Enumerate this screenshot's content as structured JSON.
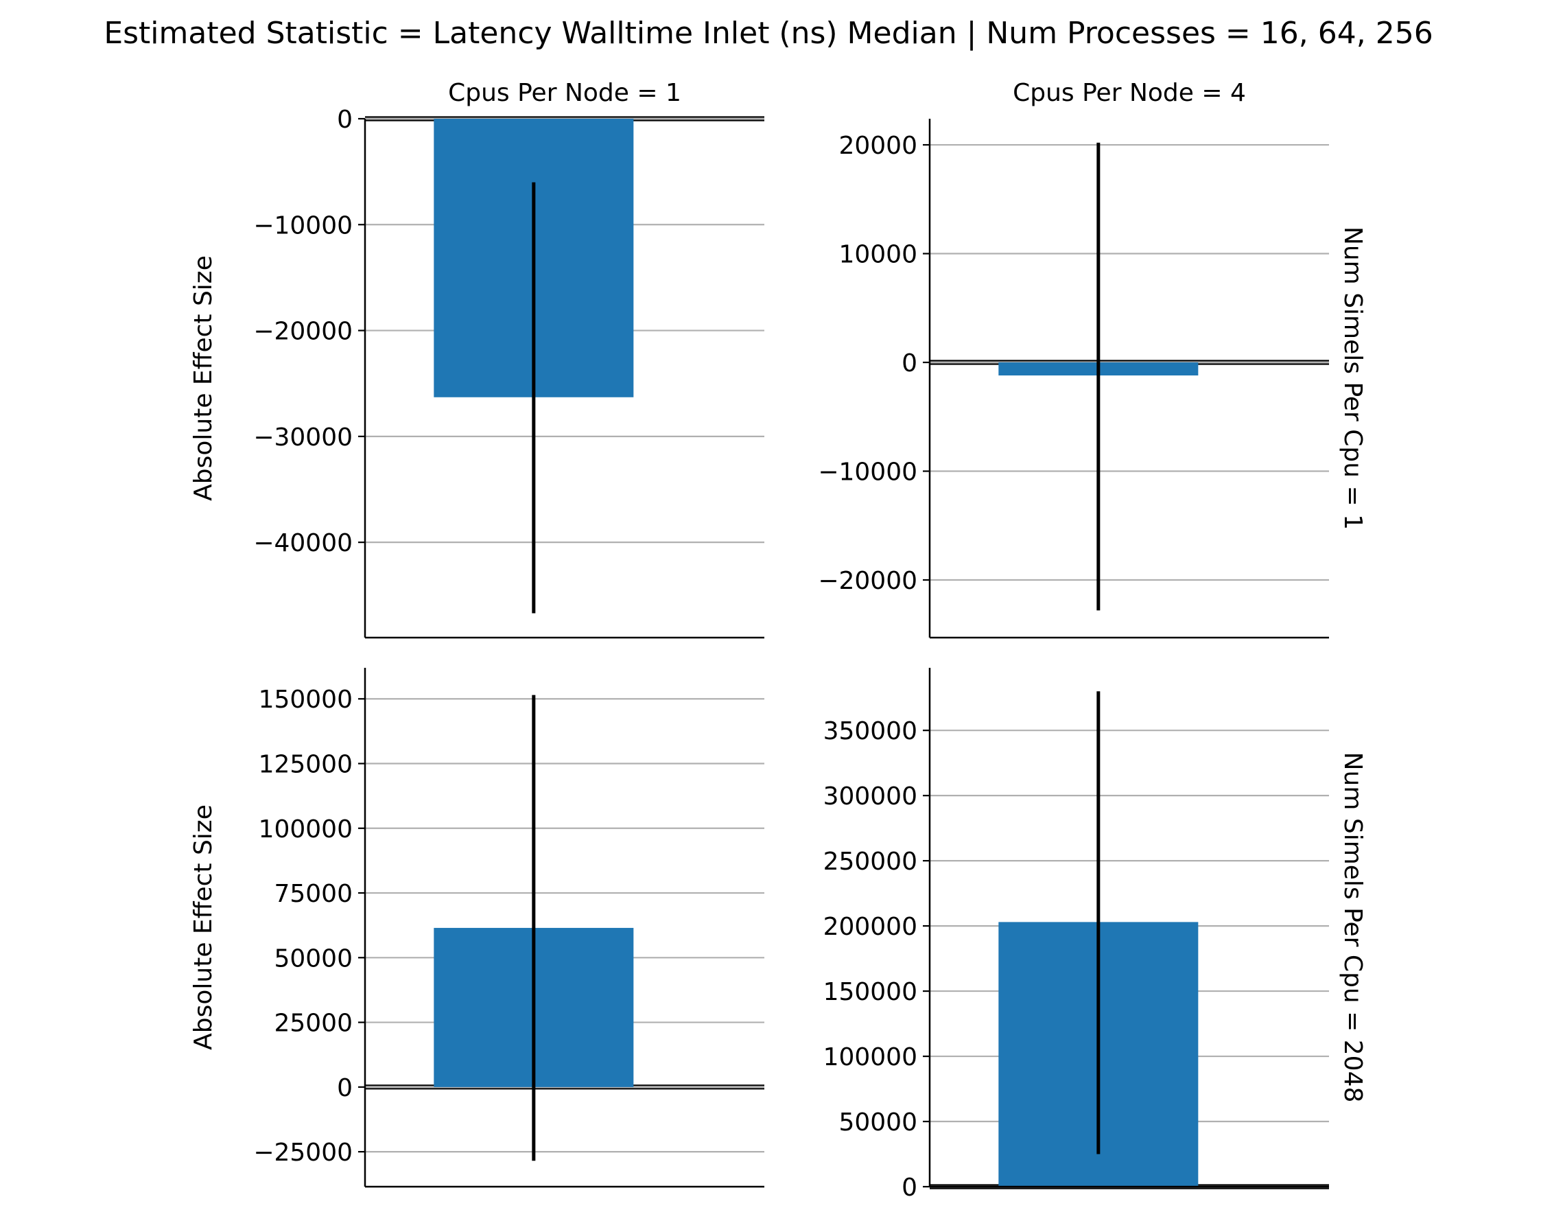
{
  "title": "Estimated Statistic = Latency Walltime Inlet (ns) Median | Num Processes = 16, 64, 256",
  "colors": {
    "bar": "#1f77b4",
    "error_bar": "#000000",
    "grid": "#b0b0b0"
  },
  "chart_data": [
    {
      "type": "bar",
      "col_title": "Cpus Per Node = 1",
      "row_label": "",
      "ylabel": "Absolute Effect Size",
      "ylim": [
        -49000,
        0
      ],
      "yticks": [
        0,
        -10000,
        -20000,
        -30000,
        -40000
      ],
      "ytick_labels": [
        "0",
        "−10000",
        "−20000",
        "−30000",
        "−40000"
      ],
      "value": -26300,
      "ci": [
        -46700,
        -6000
      ],
      "grid": true
    },
    {
      "type": "bar",
      "col_title": "Cpus Per Node = 4",
      "row_label": "Num Simels Per Cpu = 1",
      "ylabel": "",
      "ylim": [
        -25300,
        22400
      ],
      "yticks": [
        20000,
        10000,
        0,
        -10000,
        -20000
      ],
      "ytick_labels": [
        "20000",
        "10000",
        "0",
        "−10000",
        "−20000"
      ],
      "value": -1200,
      "ci": [
        -22800,
        20200
      ],
      "grid": true
    },
    {
      "type": "bar",
      "col_title": "",
      "row_label": "",
      "ylabel": "Absolute Effect Size",
      "ylim": [
        -38500,
        162000
      ],
      "yticks": [
        150000,
        125000,
        100000,
        75000,
        50000,
        25000,
        0,
        -25000
      ],
      "ytick_labels": [
        "150000",
        "125000",
        "100000",
        "75000",
        "50000",
        "25000",
        "0",
        "−25000"
      ],
      "value": 61500,
      "ci": [
        -28500,
        151500
      ],
      "grid": true
    },
    {
      "type": "bar",
      "col_title": "",
      "row_label": "Num Simels Per Cpu = 2048",
      "ylabel": "",
      "ylim": [
        0,
        398000
      ],
      "yticks": [
        350000,
        300000,
        250000,
        200000,
        150000,
        100000,
        50000,
        0
      ],
      "ytick_labels": [
        "350000",
        "300000",
        "250000",
        "200000",
        "150000",
        "100000",
        "50000",
        "0"
      ],
      "value": 203000,
      "ci": [
        25000,
        380000
      ],
      "grid": true
    }
  ]
}
